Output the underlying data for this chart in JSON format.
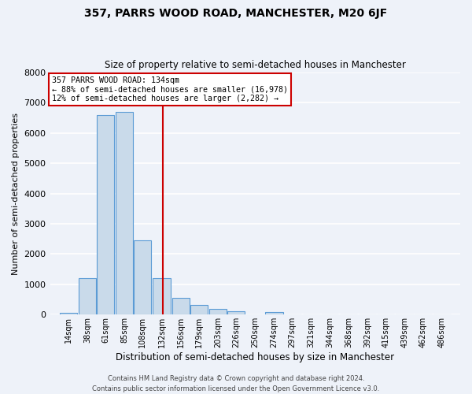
{
  "title": "357, PARRS WOOD ROAD, MANCHESTER, M20 6JF",
  "subtitle": "Size of property relative to semi-detached houses in Manchester",
  "bar_labels": [
    "14sqm",
    "38sqm",
    "61sqm",
    "85sqm",
    "108sqm",
    "132sqm",
    "156sqm",
    "179sqm",
    "203sqm",
    "226sqm",
    "250sqm",
    "274sqm",
    "297sqm",
    "321sqm",
    "344sqm",
    "368sqm",
    "392sqm",
    "415sqm",
    "439sqm",
    "462sqm",
    "486sqm"
  ],
  "bar_heights": [
    50,
    1200,
    6600,
    6700,
    2450,
    1200,
    550,
    330,
    200,
    110,
    0,
    90,
    0,
    0,
    0,
    0,
    0,
    0,
    0,
    0,
    0
  ],
  "bar_color": "#c9daea",
  "bar_edge_color": "#5b9bd5",
  "property_line_x": 134,
  "property_line_color": "#cc0000",
  "xlabel": "Distribution of semi-detached houses by size in Manchester",
  "ylabel": "Number of semi-detached properties",
  "ylim": [
    0,
    8000
  ],
  "annotation_title": "357 PARRS WOOD ROAD: 134sqm",
  "annotation_line1": "← 88% of semi-detached houses are smaller (16,978)",
  "annotation_line2": "12% of semi-detached houses are larger (2,282) →",
  "annotation_box_color": "#ffffff",
  "annotation_box_edge": "#cc0000",
  "footer_line1": "Contains HM Land Registry data © Crown copyright and database right 2024.",
  "footer_line2": "Contains public sector information licensed under the Open Government Licence v3.0.",
  "background_color": "#eef2f9",
  "grid_color": "#ffffff",
  "bin_width": 23
}
